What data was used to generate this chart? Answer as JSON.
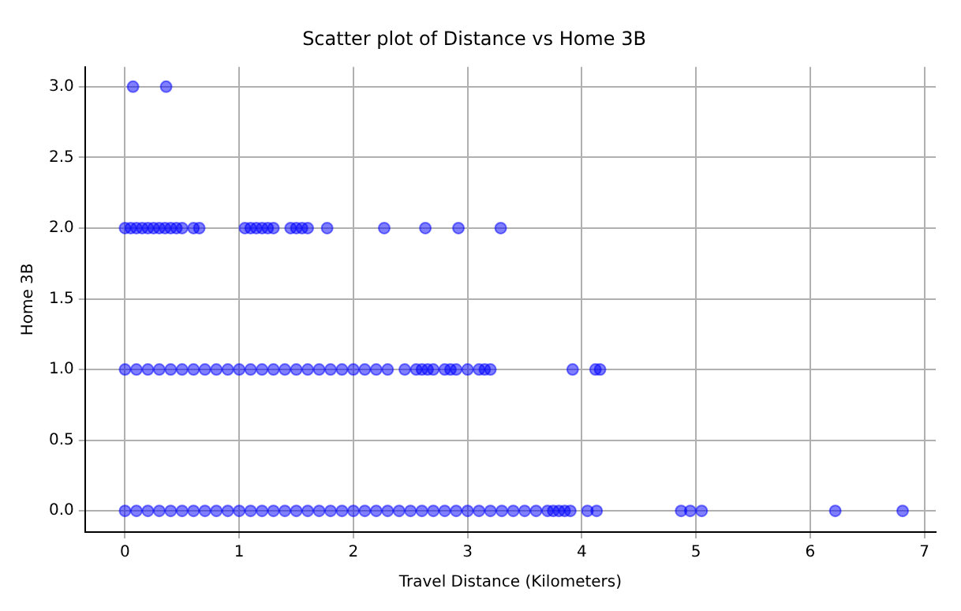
{
  "chart_data": {
    "type": "scatter",
    "title": "Scatter plot of Distance vs Home 3B",
    "xlabel": "Travel Distance (Kilometers)",
    "ylabel": "Home 3B",
    "xlim": [
      -0.35,
      7.1
    ],
    "xticks": [
      0,
      1,
      2,
      3,
      4,
      5,
      6,
      7
    ],
    "ylim": [
      -0.15,
      3.14
    ],
    "yticks": [
      {
        "value": 0,
        "label": "0.0"
      },
      0.5,
      {
        "value": 1,
        "label": "1.0"
      },
      1.5,
      {
        "value": 2,
        "label": "2.0"
      },
      2.5,
      {
        "value": 3,
        "label": "3.0"
      }
    ],
    "grid": true,
    "marker": "circle",
    "series": [
      {
        "color": "#0000ff",
        "x": [
          0,
          0.1,
          0.2,
          0.3,
          0.4,
          0.5,
          0.6,
          0.7,
          0.8,
          0.9,
          1.0,
          1.1,
          1.2,
          1.3,
          1.4,
          1.5,
          1.6,
          1.7,
          1.8,
          1.9,
          2.0,
          2.1,
          2.2,
          2.3,
          2.4,
          2.5,
          2.6,
          2.7,
          2.8,
          2.9,
          3.0,
          3.1,
          3.2,
          3.3,
          3.4,
          3.5,
          3.6,
          3.7,
          3.75,
          3.8,
          3.85,
          3.9,
          4.05,
          4.13,
          4.87,
          4.95,
          5.05,
          6.22,
          6.81,
          0,
          0.1,
          0.2,
          0.3,
          0.4,
          0.5,
          0.6,
          0.7,
          0.8,
          0.9,
          1.0,
          1.1,
          1.2,
          1.3,
          1.4,
          1.5,
          1.6,
          1.7,
          1.8,
          1.9,
          2.0,
          2.1,
          2.2,
          2.3,
          2.45,
          2.55,
          2.6,
          2.65,
          2.7,
          2.8,
          2.85,
          2.9,
          3.0,
          3.1,
          3.15,
          3.2,
          3.92,
          4.12,
          4.16,
          0,
          0.05,
          0.1,
          0.15,
          0.2,
          0.25,
          0.3,
          0.35,
          0.4,
          0.45,
          0.5,
          0.6,
          0.65,
          1.05,
          1.1,
          1.15,
          1.2,
          1.25,
          1.3,
          1.45,
          1.5,
          1.55,
          1.6,
          1.77,
          2.27,
          2.63,
          2.92,
          3.29,
          0.07,
          0.36
        ],
        "values": [
          0,
          0,
          0,
          0,
          0,
          0,
          0,
          0,
          0,
          0,
          0,
          0,
          0,
          0,
          0,
          0,
          0,
          0,
          0,
          0,
          0,
          0,
          0,
          0,
          0,
          0,
          0,
          0,
          0,
          0,
          0,
          0,
          0,
          0,
          0,
          0,
          0,
          0,
          0,
          0,
          0,
          0,
          0,
          0,
          0,
          0,
          0,
          0,
          0,
          1,
          1,
          1,
          1,
          1,
          1,
          1,
          1,
          1,
          1,
          1,
          1,
          1,
          1,
          1,
          1,
          1,
          1,
          1,
          1,
          1,
          1,
          1,
          1,
          1,
          1,
          1,
          1,
          1,
          1,
          1,
          1,
          1,
          1,
          1,
          1,
          1,
          1,
          1,
          2,
          2,
          2,
          2,
          2,
          2,
          2,
          2,
          2,
          2,
          2,
          2,
          2,
          2,
          2,
          2,
          2,
          2,
          2,
          2,
          2,
          2,
          2,
          2,
          2,
          2,
          2,
          2,
          3,
          3
        ]
      }
    ]
  }
}
